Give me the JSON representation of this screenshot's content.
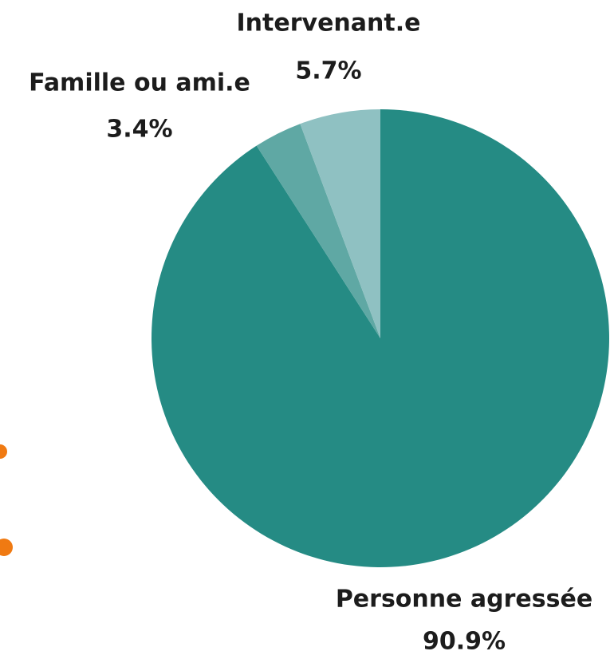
{
  "chart_data": {
    "type": "pie",
    "categories": [
      "Personne agressée",
      "Famille ou ami.e",
      "Intervenant.e"
    ],
    "values": [
      90.9,
      3.4,
      5.7
    ],
    "value_labels": [
      "90.9%",
      "3.4%",
      "5.7%"
    ],
    "colors": [
      "#258b84",
      "#5fa8a4",
      "#8fc1c2"
    ]
  }
}
